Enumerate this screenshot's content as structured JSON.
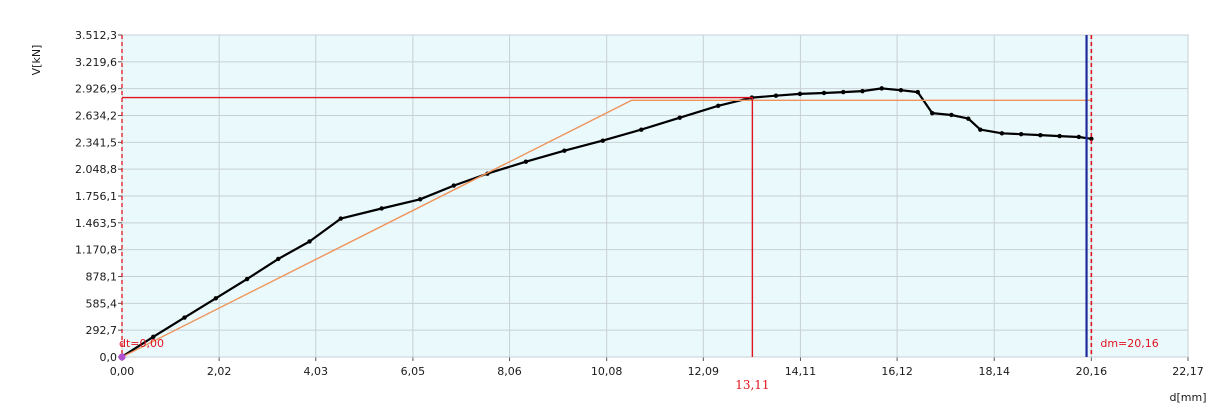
{
  "chart_data": {
    "type": "line",
    "xlabel": "d[mm]",
    "ylabel": "V[kN]",
    "xlim": [
      0,
      22.17
    ],
    "ylim": [
      0,
      3512.3
    ],
    "x_ticks": [
      "0,00",
      "2,02",
      "4,03",
      "6,05",
      "8,06",
      "10,08",
      "12,09",
      "14,11",
      "16,12",
      "18,14",
      "20,16",
      "22,17"
    ],
    "x_tick_values": [
      0,
      2.02,
      4.03,
      6.05,
      8.06,
      10.08,
      12.09,
      14.11,
      16.12,
      18.14,
      20.16,
      22.17
    ],
    "y_ticks": [
      "0,0",
      "292,7",
      "585,4",
      "878,1",
      "1.170,8",
      "1.463,5",
      "1.756,1",
      "2.048,8",
      "2.341,5",
      "2.634,2",
      "2.926,9",
      "3.219,6",
      "3.512,3"
    ],
    "y_tick_values": [
      0,
      292.7,
      585.4,
      878.1,
      1170.8,
      1463.5,
      1756.1,
      2048.8,
      2341.5,
      2634.2,
      2926.9,
      3219.6,
      3512.3
    ],
    "grid": true,
    "series": [
      {
        "color": "#000000",
        "x": [
          0.0,
          0.02,
          0.65,
          1.3,
          1.95,
          2.6,
          3.25,
          3.9,
          4.55,
          5.4,
          6.2,
          6.9,
          7.6,
          8.4,
          9.2,
          10.0,
          10.8,
          11.6,
          12.4,
          13.1,
          13.6,
          14.1,
          14.6,
          15.0,
          15.4,
          15.8,
          16.2,
          16.55,
          16.85,
          17.25,
          17.6,
          17.85,
          18.3,
          18.7,
          19.1,
          19.5,
          19.9,
          20.16
        ],
        "y": [
          0,
          10,
          220,
          430,
          640,
          850,
          1070,
          1260,
          1510,
          1620,
          1720,
          1870,
          2000,
          2130,
          2250,
          2360,
          2480,
          2610,
          2740,
          2830,
          2850,
          2870,
          2880,
          2890,
          2900,
          2930,
          2910,
          2890,
          2660,
          2640,
          2600,
          2480,
          2440,
          2430,
          2420,
          2410,
          2400,
          2380
        ]
      },
      {
        "color": "#f0935a",
        "x": [
          0.0,
          10.6,
          20.16
        ],
        "y": [
          0,
          2800,
          2800
        ]
      }
    ],
    "markers": {
      "x_value": 13.11,
      "x_label": "13,11",
      "y_value": 2830,
      "dt_label": "dt=0,00",
      "dt_value": 0.0,
      "dm_label": "dm=20,16",
      "dm_value": 20.16,
      "blue_line_value": 20.06
    },
    "colors": {
      "plot_bg": "#e9f9fc",
      "grid": "#c9d0d4",
      "marker_red": "#e0141e",
      "blue_line": "#1f2a9c",
      "dt_dot": "#b04fd0"
    }
  }
}
